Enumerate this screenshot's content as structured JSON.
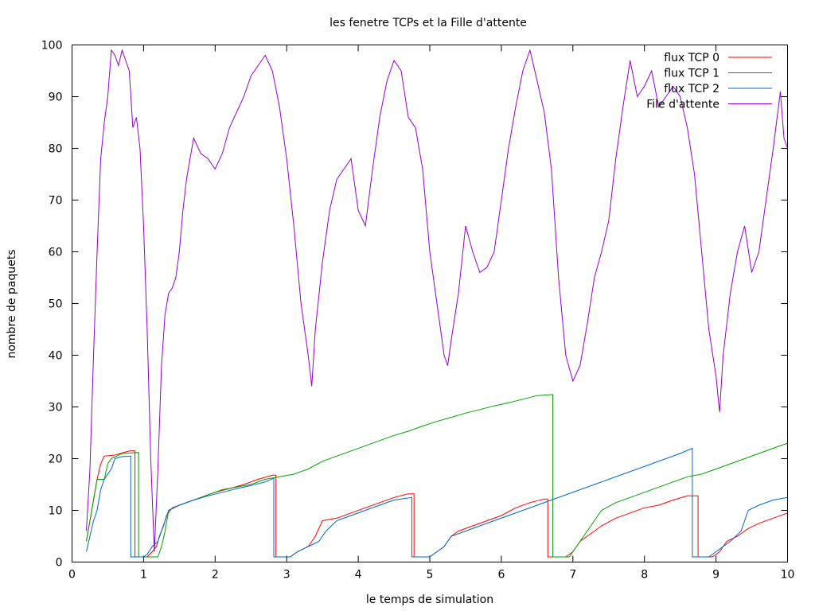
{
  "chart_data": {
    "type": "line",
    "title": "les fenetre TCPs et la Fille d'attente",
    "xlabel": "le temps de simulation",
    "ylabel": "nombre de paquets",
    "xlim": [
      0,
      10
    ],
    "ylim": [
      0,
      100
    ],
    "xticks": [
      "0",
      "1",
      "2",
      "3",
      "4",
      "5",
      "6",
      "7",
      "8",
      "9",
      "10"
    ],
    "yticks": [
      "0",
      "10",
      "20",
      "30",
      "40",
      "50",
      "60",
      "70",
      "80",
      "90",
      "100"
    ],
    "grid": false,
    "legend_position": "top-right",
    "series": [
      {
        "name": "flux TCP 0",
        "color": "#ff0000",
        "points": [
          [
            0.2,
            4
          ],
          [
            0.25,
            8
          ],
          [
            0.3,
            12
          ],
          [
            0.35,
            16
          ],
          [
            0.4,
            19
          ],
          [
            0.45,
            20.5
          ],
          [
            0.6,
            20.7
          ],
          [
            0.8,
            21.5
          ],
          [
            0.88,
            21.5
          ],
          [
            0.88,
            1
          ],
          [
            1.05,
            1
          ],
          [
            1.12,
            2
          ],
          [
            1.18,
            3
          ],
          [
            1.22,
            5
          ],
          [
            1.28,
            7
          ],
          [
            1.32,
            9
          ],
          [
            1.4,
            10.5
          ],
          [
            1.6,
            11.5
          ],
          [
            1.8,
            12.5
          ],
          [
            2.0,
            13.5
          ],
          [
            2.2,
            14.2
          ],
          [
            2.4,
            15
          ],
          [
            2.6,
            16
          ],
          [
            2.8,
            16.8
          ],
          [
            2.85,
            16.8
          ],
          [
            2.85,
            1
          ],
          [
            3.05,
            1
          ],
          [
            3.15,
            2
          ],
          [
            3.3,
            3
          ],
          [
            3.4,
            5
          ],
          [
            3.5,
            8
          ],
          [
            3.7,
            8.5
          ],
          [
            3.9,
            9.5
          ],
          [
            4.1,
            10.5
          ],
          [
            4.3,
            11.5
          ],
          [
            4.5,
            12.5
          ],
          [
            4.7,
            13.2
          ],
          [
            4.78,
            13.2
          ],
          [
            4.78,
            1
          ],
          [
            5.0,
            1
          ],
          [
            5.1,
            2
          ],
          [
            5.2,
            3
          ],
          [
            5.3,
            5
          ],
          [
            5.4,
            6
          ],
          [
            5.6,
            7
          ],
          [
            5.8,
            8
          ],
          [
            6.0,
            9
          ],
          [
            6.2,
            10.5
          ],
          [
            6.4,
            11.5
          ],
          [
            6.6,
            12.2
          ],
          [
            6.65,
            12.2
          ],
          [
            6.65,
            1
          ],
          [
            6.9,
            1
          ],
          [
            7.0,
            2
          ],
          [
            7.1,
            4
          ],
          [
            7.2,
            5
          ],
          [
            7.4,
            7
          ],
          [
            7.6,
            8.5
          ],
          [
            7.8,
            9.5
          ],
          [
            8.0,
            10.5
          ],
          [
            8.2,
            11
          ],
          [
            8.4,
            12
          ],
          [
            8.6,
            12.8
          ],
          [
            8.75,
            12.8
          ],
          [
            8.75,
            1
          ],
          [
            8.95,
            1
          ],
          [
            9.05,
            2
          ],
          [
            9.15,
            4
          ],
          [
            9.3,
            5
          ],
          [
            9.45,
            6.5
          ],
          [
            9.6,
            7.5
          ],
          [
            9.8,
            8.5
          ],
          [
            10.0,
            9.5
          ]
        ]
      },
      {
        "name": "flux TCP 1",
        "color": "#00a000",
        "points": [
          [
            0.2,
            4
          ],
          [
            0.25,
            8
          ],
          [
            0.3,
            12
          ],
          [
            0.35,
            16
          ],
          [
            0.45,
            16
          ],
          [
            0.5,
            19
          ],
          [
            0.55,
            20
          ],
          [
            0.7,
            21
          ],
          [
            0.93,
            21.2
          ],
          [
            0.93,
            1
          ],
          [
            1.2,
            1
          ],
          [
            1.25,
            3
          ],
          [
            1.3,
            6
          ],
          [
            1.35,
            10
          ],
          [
            1.5,
            11
          ],
          [
            1.7,
            12
          ],
          [
            1.9,
            13
          ],
          [
            2.1,
            14
          ],
          [
            2.3,
            14.5
          ],
          [
            2.5,
            15
          ],
          [
            2.7,
            16
          ],
          [
            2.9,
            16.5
          ],
          [
            3.1,
            17
          ],
          [
            3.3,
            18
          ],
          [
            3.5,
            19.5
          ],
          [
            3.7,
            20.5
          ],
          [
            3.9,
            21.5
          ],
          [
            4.1,
            22.5
          ],
          [
            4.3,
            23.5
          ],
          [
            4.5,
            24.5
          ],
          [
            4.7,
            25.3
          ],
          [
            4.9,
            26.3
          ],
          [
            5.1,
            27.2
          ],
          [
            5.3,
            28
          ],
          [
            5.5,
            28.8
          ],
          [
            5.7,
            29.5
          ],
          [
            5.9,
            30.2
          ],
          [
            6.1,
            30.8
          ],
          [
            6.3,
            31.5
          ],
          [
            6.5,
            32.2
          ],
          [
            6.72,
            32.4
          ],
          [
            6.72,
            1
          ],
          [
            6.95,
            1
          ],
          [
            7.0,
            2
          ],
          [
            7.1,
            4
          ],
          [
            7.2,
            6
          ],
          [
            7.3,
            8
          ],
          [
            7.4,
            10
          ],
          [
            7.6,
            11.5
          ],
          [
            7.8,
            12.5
          ],
          [
            8.0,
            13.5
          ],
          [
            8.2,
            14.5
          ],
          [
            8.4,
            15.5
          ],
          [
            8.6,
            16.5
          ],
          [
            8.8,
            17
          ],
          [
            9.0,
            18
          ],
          [
            9.2,
            19
          ],
          [
            9.4,
            20
          ],
          [
            9.6,
            21
          ],
          [
            9.8,
            22
          ],
          [
            10.0,
            23
          ]
        ]
      },
      {
        "name": "flux TCP 2",
        "color": "#0066cc",
        "points": [
          [
            0.2,
            2
          ],
          [
            0.25,
            5
          ],
          [
            0.3,
            8
          ],
          [
            0.35,
            10
          ],
          [
            0.4,
            14
          ],
          [
            0.45,
            16
          ],
          [
            0.55,
            18
          ],
          [
            0.6,
            20
          ],
          [
            0.7,
            20.4
          ],
          [
            0.82,
            20.5
          ],
          [
            0.82,
            1
          ],
          [
            1.0,
            1
          ],
          [
            1.05,
            1.5
          ],
          [
            1.12,
            3
          ],
          [
            1.2,
            4
          ],
          [
            1.25,
            6
          ],
          [
            1.3,
            8
          ],
          [
            1.35,
            10
          ],
          [
            1.5,
            11
          ],
          [
            1.7,
            12
          ],
          [
            1.9,
            12.8
          ],
          [
            2.1,
            13.5
          ],
          [
            2.3,
            14.2
          ],
          [
            2.5,
            14.8
          ],
          [
            2.7,
            15.5
          ],
          [
            2.82,
            16.2
          ],
          [
            2.82,
            1
          ],
          [
            3.05,
            1
          ],
          [
            3.15,
            2
          ],
          [
            3.3,
            3
          ],
          [
            3.45,
            4
          ],
          [
            3.55,
            6
          ],
          [
            3.7,
            8
          ],
          [
            3.9,
            9
          ],
          [
            4.1,
            10
          ],
          [
            4.3,
            11
          ],
          [
            4.5,
            12
          ],
          [
            4.75,
            12.5
          ],
          [
            4.75,
            1
          ],
          [
            5.0,
            1
          ],
          [
            5.1,
            2
          ],
          [
            5.2,
            3
          ],
          [
            5.3,
            5
          ],
          [
            5.5,
            6
          ],
          [
            5.7,
            7
          ],
          [
            5.9,
            8
          ],
          [
            6.1,
            9
          ],
          [
            6.3,
            10
          ],
          [
            6.5,
            11
          ],
          [
            6.7,
            12
          ],
          [
            6.9,
            13
          ],
          [
            7.1,
            14
          ],
          [
            7.3,
            15
          ],
          [
            7.5,
            16
          ],
          [
            7.7,
            17
          ],
          [
            7.9,
            18
          ],
          [
            8.1,
            19
          ],
          [
            8.3,
            20
          ],
          [
            8.5,
            21
          ],
          [
            8.67,
            22
          ],
          [
            8.67,
            1
          ],
          [
            8.9,
            1
          ],
          [
            9.0,
            2
          ],
          [
            9.1,
            3
          ],
          [
            9.2,
            4
          ],
          [
            9.35,
            6
          ],
          [
            9.45,
            10
          ],
          [
            9.6,
            11
          ],
          [
            9.8,
            12
          ],
          [
            10.0,
            12.5
          ]
        ]
      },
      {
        "name": "File d'attente",
        "color": "#9400d3",
        "points": [
          [
            0.2,
            6
          ],
          [
            0.25,
            18
          ],
          [
            0.3,
            40
          ],
          [
            0.35,
            60
          ],
          [
            0.4,
            78
          ],
          [
            0.45,
            85
          ],
          [
            0.5,
            90
          ],
          [
            0.55,
            99
          ],
          [
            0.6,
            98
          ],
          [
            0.65,
            96
          ],
          [
            0.7,
            99
          ],
          [
            0.75,
            97
          ],
          [
            0.8,
            95
          ],
          [
            0.85,
            84
          ],
          [
            0.9,
            86
          ],
          [
            0.95,
            80
          ],
          [
            1.0,
            65
          ],
          [
            1.05,
            45
          ],
          [
            1.1,
            20
          ],
          [
            1.15,
            2
          ],
          [
            1.2,
            18
          ],
          [
            1.25,
            38
          ],
          [
            1.3,
            48
          ],
          [
            1.35,
            52
          ],
          [
            1.4,
            53
          ],
          [
            1.45,
            55
          ],
          [
            1.5,
            60
          ],
          [
            1.55,
            68
          ],
          [
            1.6,
            74
          ],
          [
            1.65,
            78
          ],
          [
            1.7,
            82
          ],
          [
            1.8,
            79
          ],
          [
            1.9,
            78
          ],
          [
            2.0,
            76
          ],
          [
            2.1,
            79
          ],
          [
            2.2,
            84
          ],
          [
            2.3,
            87
          ],
          [
            2.4,
            90
          ],
          [
            2.5,
            94
          ],
          [
            2.6,
            96
          ],
          [
            2.7,
            98
          ],
          [
            2.8,
            95
          ],
          [
            2.9,
            88
          ],
          [
            3.0,
            78
          ],
          [
            3.1,
            65
          ],
          [
            3.2,
            50
          ],
          [
            3.3,
            40
          ],
          [
            3.35,
            34
          ],
          [
            3.4,
            45
          ],
          [
            3.5,
            58
          ],
          [
            3.6,
            68
          ],
          [
            3.7,
            74
          ],
          [
            3.8,
            76
          ],
          [
            3.9,
            78
          ],
          [
            4.0,
            68
          ],
          [
            4.1,
            65
          ],
          [
            4.2,
            76
          ],
          [
            4.3,
            86
          ],
          [
            4.4,
            93
          ],
          [
            4.5,
            97
          ],
          [
            4.6,
            95
          ],
          [
            4.7,
            86
          ],
          [
            4.8,
            84
          ],
          [
            4.9,
            76
          ],
          [
            5.0,
            60
          ],
          [
            5.1,
            50
          ],
          [
            5.2,
            40
          ],
          [
            5.25,
            38
          ],
          [
            5.3,
            43
          ],
          [
            5.4,
            52
          ],
          [
            5.5,
            65
          ],
          [
            5.6,
            60
          ],
          [
            5.7,
            56
          ],
          [
            5.8,
            57
          ],
          [
            5.9,
            60
          ],
          [
            6.0,
            70
          ],
          [
            6.1,
            80
          ],
          [
            6.2,
            88
          ],
          [
            6.3,
            95
          ],
          [
            6.4,
            99
          ],
          [
            6.5,
            93
          ],
          [
            6.6,
            87
          ],
          [
            6.7,
            76
          ],
          [
            6.8,
            55
          ],
          [
            6.9,
            40
          ],
          [
            7.0,
            35
          ],
          [
            7.1,
            38
          ],
          [
            7.2,
            46
          ],
          [
            7.3,
            55
          ],
          [
            7.4,
            60
          ],
          [
            7.5,
            66
          ],
          [
            7.6,
            78
          ],
          [
            7.7,
            88
          ],
          [
            7.8,
            97
          ],
          [
            7.9,
            90
          ],
          [
            8.0,
            92
          ],
          [
            8.1,
            95
          ],
          [
            8.2,
            88
          ],
          [
            8.3,
            90
          ],
          [
            8.4,
            92
          ],
          [
            8.5,
            90
          ],
          [
            8.6,
            84
          ],
          [
            8.7,
            75
          ],
          [
            8.8,
            60
          ],
          [
            8.9,
            45
          ],
          [
            9.0,
            36
          ],
          [
            9.05,
            29
          ],
          [
            9.1,
            40
          ],
          [
            9.2,
            52
          ],
          [
            9.3,
            60
          ],
          [
            9.4,
            65
          ],
          [
            9.5,
            56
          ],
          [
            9.6,
            60
          ],
          [
            9.7,
            70
          ],
          [
            9.8,
            80
          ],
          [
            9.9,
            91
          ],
          [
            9.95,
            82
          ],
          [
            10.0,
            80
          ]
        ]
      }
    ]
  }
}
